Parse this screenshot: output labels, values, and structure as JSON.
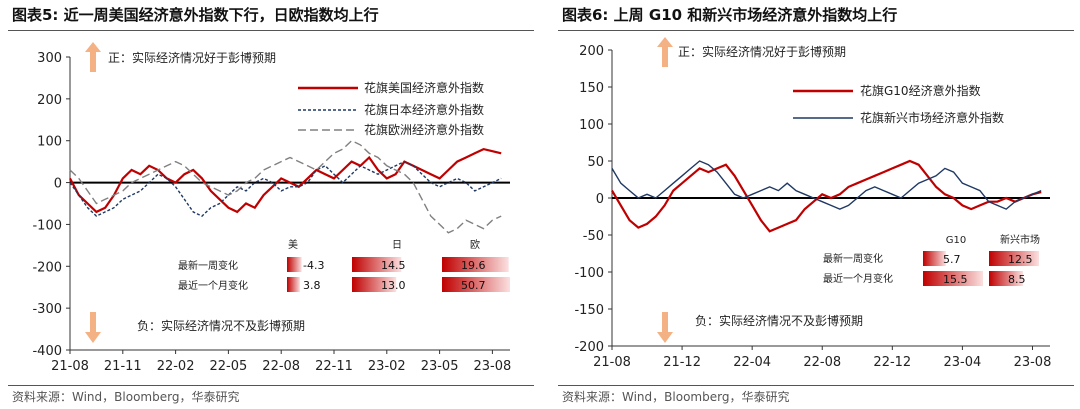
{
  "left": {
    "title": "图表5:  近一周美国经济意外指数下行，日欧指数均上行",
    "source": "资料来源：Wind，Bloomberg，华泰研究",
    "note_positive": "正：实际经济情况好于彭博预期",
    "note_negative": "负：实际经济情况不及彭博预期",
    "table": {
      "columns": [
        "美",
        "日",
        "欧"
      ],
      "rows": [
        {
          "label": "最新一周变化",
          "values": [
            "-4.3",
            "14.5",
            "19.6"
          ]
        },
        {
          "label": "最近一个月变化",
          "values": [
            "3.8",
            "13.0",
            "50.7"
          ]
        }
      ]
    }
  },
  "right": {
    "title": "图表6:  上周 G10 和新兴市场经济意外指数均上行",
    "source": "资料来源：Wind，Bloomberg，华泰研究",
    "note_positive": "正：实际经济情况好于彭博预期",
    "note_negative": "负：实际经济情况不及彭博预期",
    "table": {
      "columns": [
        "G10",
        "新兴市场"
      ],
      "rows": [
        {
          "label": "最新一周变化",
          "values": [
            "5.7",
            "12.5"
          ]
        },
        {
          "label": "最近一个月变化",
          "values": [
            "15.5",
            "8.5"
          ]
        }
      ]
    }
  },
  "colors": {
    "red": "#c00000",
    "navy": "#1f3864",
    "gray": "#808080",
    "arrow": "#f4b183"
  },
  "chart_data": [
    {
      "type": "line",
      "title": "近一周美国经济意外指数下行，日欧指数均上行",
      "x_ticks": [
        "21-08",
        "21-11",
        "22-02",
        "22-05",
        "22-08",
        "22-11",
        "23-02",
        "23-05",
        "23-08"
      ],
      "ylim": [
        -400,
        300
      ],
      "y_ticks": [
        -400,
        -300,
        -200,
        -100,
        0,
        100,
        200,
        300
      ],
      "x_range_months": [
        0,
        25
      ],
      "series": [
        {
          "name": "花旗美国经济意外指数",
          "color": "#c00000",
          "dash": "solid",
          "x": [
            0,
            0.5,
            1,
            1.5,
            2,
            2.5,
            3,
            3.5,
            4,
            4.5,
            5,
            5.5,
            6,
            6.5,
            7,
            7.5,
            8,
            8.5,
            9,
            9.5,
            10,
            10.5,
            11,
            11.5,
            12,
            12.5,
            13,
            13.5,
            14,
            14.5,
            15,
            15.5,
            16,
            16.5,
            17,
            17.5,
            18,
            18.5,
            19,
            19.5,
            20,
            20.5,
            21,
            21.5,
            22,
            22.5,
            23,
            23.5,
            24,
            24.5
          ],
          "values": [
            10,
            -30,
            -50,
            -70,
            -60,
            -30,
            10,
            30,
            20,
            40,
            30,
            10,
            0,
            20,
            30,
            10,
            -20,
            -40,
            -60,
            -70,
            -50,
            -60,
            -30,
            -10,
            10,
            0,
            -10,
            10,
            30,
            20,
            10,
            30,
            50,
            40,
            60,
            30,
            10,
            20,
            50,
            40,
            30,
            20,
            10,
            30,
            50,
            60,
            70,
            80,
            75,
            70
          ]
        },
        {
          "name": "花旗日本经济意外指数",
          "color": "#1f3864",
          "dash": "dashed",
          "x": [
            0,
            0.5,
            1,
            1.5,
            2,
            2.5,
            3,
            3.5,
            4,
            4.5,
            5,
            5.5,
            6,
            6.5,
            7,
            7.5,
            8,
            8.5,
            9,
            9.5,
            10,
            10.5,
            11,
            11.5,
            12,
            12.5,
            13,
            13.5,
            14,
            14.5,
            15,
            15.5,
            16,
            16.5,
            17,
            17.5,
            18,
            18.5,
            19,
            19.5,
            20,
            20.5,
            21,
            21.5,
            22,
            22.5,
            23,
            23.5,
            24,
            24.5
          ],
          "values": [
            0,
            -30,
            -60,
            -80,
            -70,
            -60,
            -40,
            -30,
            -20,
            0,
            20,
            10,
            -10,
            -40,
            -70,
            -80,
            -60,
            -50,
            -30,
            -10,
            -20,
            0,
            10,
            0,
            -20,
            -10,
            -10,
            0,
            30,
            40,
            20,
            0,
            20,
            40,
            30,
            20,
            30,
            40,
            50,
            40,
            20,
            0,
            -10,
            0,
            10,
            0,
            -20,
            -10,
            0,
            10
          ]
        },
        {
          "name": "花旗欧洲经济意外指数",
          "color": "#808080",
          "dash": "longdash",
          "x": [
            0,
            0.5,
            1,
            1.5,
            2,
            2.5,
            3,
            3.5,
            4,
            4.5,
            5,
            5.5,
            6,
            6.5,
            7,
            7.5,
            8,
            8.5,
            9,
            9.5,
            10,
            10.5,
            11,
            11.5,
            12,
            12.5,
            13,
            13.5,
            14,
            14.5,
            15,
            15.5,
            16,
            16.5,
            17,
            17.5,
            18,
            18.5,
            19,
            19.5,
            20,
            20.5,
            21,
            21.5,
            22,
            22.5,
            23,
            23.5,
            24,
            24.5
          ],
          "values": [
            30,
            10,
            -20,
            -50,
            -40,
            -30,
            -20,
            0,
            10,
            20,
            30,
            40,
            50,
            40,
            20,
            0,
            -10,
            -20,
            -30,
            -20,
            0,
            10,
            30,
            40,
            50,
            60,
            50,
            40,
            30,
            50,
            70,
            80,
            100,
            90,
            70,
            60,
            40,
            30,
            20,
            0,
            -40,
            -80,
            -100,
            -120,
            -110,
            -90,
            -100,
            -110,
            -90,
            -80
          ]
        }
      ]
    },
    {
      "type": "line",
      "title": "上周 G10 和新兴市场经济意外指数均上行",
      "x_ticks": [
        "21-08",
        "21-12",
        "22-04",
        "22-08",
        "22-12",
        "23-04",
        "23-08"
      ],
      "ylim": [
        -200,
        200
      ],
      "y_ticks": [
        -200,
        -150,
        -100,
        -50,
        0,
        50,
        100,
        150,
        200
      ],
      "x_range_months": [
        0,
        25
      ],
      "series": [
        {
          "name": "花旗G10经济意外指数",
          "color": "#c00000",
          "dash": "solid",
          "x": [
            0,
            0.5,
            1,
            1.5,
            2,
            2.5,
            3,
            3.5,
            4,
            4.5,
            5,
            5.5,
            6,
            6.5,
            7,
            7.5,
            8,
            8.5,
            9,
            9.5,
            10,
            10.5,
            11,
            11.5,
            12,
            12.5,
            13,
            13.5,
            14,
            14.5,
            15,
            15.5,
            16,
            16.5,
            17,
            17.5,
            18,
            18.5,
            19,
            19.5,
            20,
            20.5,
            21,
            21.5,
            22,
            22.5,
            23,
            23.5,
            24,
            24.5
          ],
          "values": [
            10,
            -10,
            -30,
            -40,
            -35,
            -25,
            -10,
            10,
            20,
            30,
            40,
            35,
            40,
            45,
            30,
            10,
            -10,
            -30,
            -45,
            -40,
            -35,
            -30,
            -15,
            -5,
            5,
            0,
            5,
            15,
            20,
            25,
            30,
            35,
            40,
            45,
            50,
            45,
            30,
            15,
            5,
            0,
            -10,
            -15,
            -10,
            -5,
            -5,
            0,
            -5,
            0,
            5,
            8
          ]
        },
        {
          "name": "花旗新兴市场经济意外指数",
          "color": "#1f3864",
          "dash": "solid",
          "x": [
            0,
            0.5,
            1,
            1.5,
            2,
            2.5,
            3,
            3.5,
            4,
            4.5,
            5,
            5.5,
            6,
            6.5,
            7,
            7.5,
            8,
            8.5,
            9,
            9.5,
            10,
            10.5,
            11,
            11.5,
            12,
            12.5,
            13,
            13.5,
            14,
            14.5,
            15,
            15.5,
            16,
            16.5,
            17,
            17.5,
            18,
            18.5,
            19,
            19.5,
            20,
            20.5,
            21,
            21.5,
            22,
            22.5,
            23,
            23.5,
            24,
            24.5
          ],
          "values": [
            40,
            20,
            10,
            0,
            5,
            0,
            10,
            20,
            30,
            40,
            50,
            45,
            35,
            20,
            5,
            0,
            5,
            10,
            15,
            10,
            20,
            10,
            5,
            0,
            -5,
            -10,
            -15,
            -10,
            0,
            10,
            15,
            10,
            5,
            0,
            10,
            20,
            25,
            30,
            40,
            35,
            20,
            15,
            10,
            -5,
            -10,
            -15,
            -5,
            0,
            5,
            10
          ]
        }
      ]
    }
  ]
}
